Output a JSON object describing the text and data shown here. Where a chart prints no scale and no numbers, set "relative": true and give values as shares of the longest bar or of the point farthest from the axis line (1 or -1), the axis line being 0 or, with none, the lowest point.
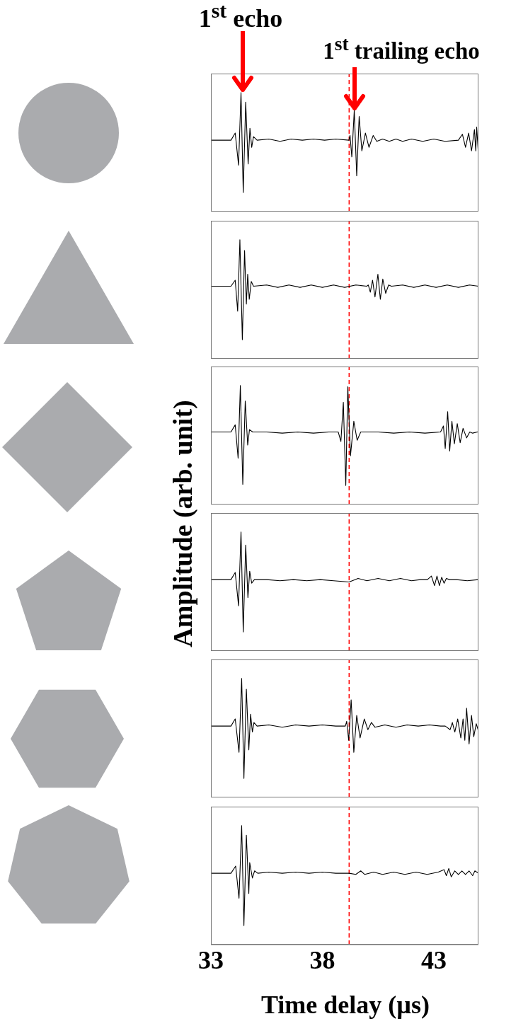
{
  "chart_data": [
    {
      "type": "line",
      "relative": true,
      "color": "#000000",
      "marker": "none",
      "line_style": "solid",
      "xlim": [
        33,
        45
      ],
      "xticks": [
        33,
        38,
        43
      ],
      "tick_labels": false,
      "annotations": [
        "1$^{st}$ echo",
        "1$^{st}$ trailing echo"
      ],
      "ref_lines": [
        {
          "axis": "x",
          "value": 39.2,
          "color": "#ff0000",
          "line_style": "dashed"
        }
      ],
      "x": [
        33,
        33.9,
        34.09,
        34.24,
        34.35,
        34.45,
        34.56,
        34.67,
        34.75,
        34.83,
        34.91,
        35.07,
        35.6,
        36.1,
        36.6,
        37.1,
        37.6,
        38.1,
        38.6,
        39.19,
        39.24,
        39.32,
        39.43,
        39.54,
        39.65,
        39.77,
        39.93,
        40.09,
        40.28,
        40.44,
        40.7,
        41,
        41.3,
        41.6,
        42,
        42.5,
        43,
        43.5,
        44.1,
        44.28,
        44.42,
        44.56,
        44.69,
        44.82,
        44.88,
        44.92,
        44.99
      ],
      "values": [
        0.6,
        0.6,
        0.66,
        0.39,
        1,
        0.16,
        0.92,
        0.4,
        0.7,
        0.54,
        0.63,
        0.6,
        0.61,
        0.59,
        0.61,
        0.6,
        0.61,
        0.6,
        0.61,
        0.6,
        0.64,
        0.46,
        0.85,
        0.3,
        0.8,
        0.51,
        0.66,
        0.54,
        0.64,
        0.59,
        0.61,
        0.59,
        0.61,
        0.59,
        0.61,
        0.59,
        0.61,
        0.59,
        0.6,
        0.65,
        0.54,
        0.66,
        0.51,
        0.69,
        0.51,
        0.71,
        0.51
      ]
    },
    {
      "type": "line",
      "relative": true,
      "color": "#000000",
      "marker": "none",
      "line_style": "solid",
      "xlim": [
        33,
        45
      ],
      "xticks": [
        33,
        38,
        43
      ],
      "tick_labels": false,
      "ref_lines": [
        {
          "axis": "x",
          "value": 39.2,
          "color": "#ff0000",
          "line_style": "dashed"
        }
      ],
      "x": [
        33,
        33.9,
        34.09,
        34.2,
        34.3,
        34.41,
        34.51,
        34.59,
        34.65,
        34.72,
        34.81,
        34.91,
        35.5,
        36,
        36.5,
        37,
        37.5,
        38,
        38.5,
        39,
        39.5,
        39.99,
        40.06,
        40.15,
        40.25,
        40.36,
        40.49,
        40.6,
        40.71,
        40.84,
        40.97,
        41.1,
        41.6,
        42.1,
        42.6,
        43.1,
        43.6,
        44.1,
        44.6,
        45
      ],
      "values": [
        0.61,
        0.61,
        0.66,
        0.4,
        1,
        0.16,
        0.91,
        0.46,
        0.71,
        0.5,
        0.65,
        0.61,
        0.62,
        0.6,
        0.62,
        0.6,
        0.62,
        0.6,
        0.62,
        0.6,
        0.62,
        0.61,
        0.62,
        0.56,
        0.66,
        0.52,
        0.71,
        0.5,
        0.67,
        0.55,
        0.62,
        0.61,
        0.62,
        0.6,
        0.62,
        0.6,
        0.62,
        0.6,
        0.62,
        0.61
      ]
    },
    {
      "type": "line",
      "relative": true,
      "color": "#000000",
      "marker": "none",
      "line_style": "solid",
      "xlim": [
        33,
        45
      ],
      "xticks": [
        33,
        38,
        43
      ],
      "tick_labels": false,
      "ref_lines": [
        {
          "axis": "x",
          "value": 39.2,
          "color": "#ff0000",
          "line_style": "dashed"
        }
      ],
      "x": [
        33,
        33.9,
        34.09,
        34.22,
        34.32,
        34.43,
        34.54,
        34.65,
        34.73,
        34.87,
        35.5,
        36.2,
        36.9,
        37.6,
        38.3,
        38.71,
        38.83,
        38.94,
        39.05,
        39.14,
        39.26,
        39.41,
        39.56,
        39.72,
        39.87,
        40.5,
        41.2,
        41.9,
        42.6,
        43.3,
        43.43,
        43.51,
        43.62,
        43.71,
        43.81,
        43.92,
        44.05,
        44.18,
        44.31,
        44.47,
        44.61,
        44.74,
        44.95,
        45
      ],
      "values": [
        0.61,
        0.61,
        0.67,
        0.39,
        1,
        0.17,
        0.87,
        0.5,
        0.63,
        0.61,
        0.61,
        0.6,
        0.61,
        0.6,
        0.61,
        0.61,
        0.53,
        0.86,
        0.16,
        0.99,
        0.41,
        0.7,
        0.54,
        0.61,
        0.61,
        0.61,
        0.6,
        0.61,
        0.6,
        0.61,
        0.66,
        0.47,
        0.78,
        0.45,
        0.7,
        0.51,
        0.68,
        0.52,
        0.64,
        0.56,
        0.61,
        0.6,
        0.61,
        0.61
      ]
    },
    {
      "type": "line",
      "relative": true,
      "color": "#000000",
      "marker": "none",
      "line_style": "solid",
      "xlim": [
        33,
        45
      ],
      "xticks": [
        33,
        38,
        43
      ],
      "tick_labels": false,
      "ylabel": "Amplitude (arb. unit)",
      "ref_lines": [
        {
          "axis": "x",
          "value": 39.2,
          "color": "#ff0000",
          "line_style": "dashed"
        }
      ],
      "x": [
        33,
        33.9,
        34.09,
        34.24,
        34.35,
        34.45,
        34.56,
        34.66,
        34.74,
        34.83,
        34.95,
        35.5,
        36.1,
        36.7,
        37.3,
        37.9,
        38.5,
        39.2,
        39.6,
        40,
        40.5,
        41,
        41.5,
        42,
        42.4,
        42.71,
        42.89,
        43.03,
        43.14,
        43.25,
        43.35,
        43.46,
        43.56,
        43.7,
        44,
        44.5,
        45
      ],
      "values": [
        0.6,
        0.6,
        0.66,
        0.38,
        1,
        0.16,
        0.89,
        0.45,
        0.67,
        0.57,
        0.6,
        0.6,
        0.59,
        0.6,
        0.59,
        0.6,
        0.59,
        0.58,
        0.61,
        0.59,
        0.61,
        0.59,
        0.61,
        0.59,
        0.6,
        0.6,
        0.63,
        0.55,
        0.63,
        0.55,
        0.62,
        0.57,
        0.61,
        0.6,
        0.6,
        0.59,
        0.6
      ]
    },
    {
      "type": "line",
      "relative": true,
      "color": "#000000",
      "marker": "none",
      "line_style": "solid",
      "xlim": [
        33,
        45
      ],
      "xticks": [
        33,
        38,
        43
      ],
      "tick_labels": false,
      "ref_lines": [
        {
          "axis": "x",
          "value": 39.2,
          "color": "#ff0000",
          "line_style": "dashed"
        }
      ],
      "x": [
        33,
        33.9,
        34.09,
        34.26,
        34.38,
        34.48,
        34.59,
        34.7,
        34.78,
        34.86,
        34.93,
        35.07,
        35.6,
        36.2,
        36.8,
        37.4,
        38,
        38.6,
        39.03,
        39.09,
        39.18,
        39.29,
        39.41,
        39.54,
        39.69,
        39.88,
        40.04,
        40.2,
        40.36,
        40.8,
        41.3,
        41.8,
        42.3,
        42.8,
        43.3,
        43.51,
        43.73,
        43.83,
        43.94,
        44.07,
        44.21,
        44.31,
        44.39,
        44.47,
        44.58,
        44.69,
        44.79,
        44.9,
        45
      ],
      "values": [
        0.6,
        0.6,
        0.66,
        0.38,
        1,
        0.16,
        0.91,
        0.4,
        0.7,
        0.55,
        0.63,
        0.6,
        0.61,
        0.59,
        0.61,
        0.6,
        0.61,
        0.6,
        0.6,
        0.64,
        0.48,
        0.82,
        0.38,
        0.69,
        0.5,
        0.66,
        0.57,
        0.63,
        0.59,
        0.61,
        0.59,
        0.61,
        0.6,
        0.61,
        0.6,
        0.6,
        0.57,
        0.63,
        0.55,
        0.66,
        0.5,
        0.66,
        0.48,
        0.75,
        0.45,
        0.69,
        0.51,
        0.62,
        0.56
      ]
    },
    {
      "type": "line",
      "relative": true,
      "color": "#000000",
      "marker": "none",
      "line_style": "solid",
      "xlim": [
        33,
        45
      ],
      "xticks": [
        33,
        38,
        43
      ],
      "tick_labels": "x",
      "xlabel": "Time delay (µs)",
      "ref_lines": [
        {
          "axis": "x",
          "value": 39.2,
          "color": "#ff0000",
          "line_style": "dashed"
        }
      ],
      "x": [
        33,
        33.9,
        34.11,
        34.26,
        34.38,
        34.48,
        34.59,
        34.7,
        34.74,
        34.86,
        34.96,
        35.1,
        35.6,
        36.2,
        36.8,
        37.4,
        38,
        38.6,
        39.2,
        39.5,
        39.72,
        39.9,
        40.3,
        40.7,
        41.2,
        41.7,
        42.2,
        42.7,
        43.2,
        43.46,
        43.56,
        43.67,
        43.78,
        43.94,
        44.1,
        44.26,
        44.42,
        44.58,
        44.74,
        44.84,
        45
      ],
      "values": [
        0.6,
        0.6,
        0.66,
        0.39,
        1,
        0.16,
        0.92,
        0.43,
        0.69,
        0.56,
        0.62,
        0.6,
        0.61,
        0.6,
        0.61,
        0.6,
        0.61,
        0.6,
        0.6,
        0.59,
        0.62,
        0.59,
        0.61,
        0.59,
        0.61,
        0.59,
        0.61,
        0.59,
        0.61,
        0.63,
        0.58,
        0.64,
        0.57,
        0.62,
        0.59,
        0.62,
        0.59,
        0.62,
        0.58,
        0.62,
        0.6
      ]
    }
  ]
}
